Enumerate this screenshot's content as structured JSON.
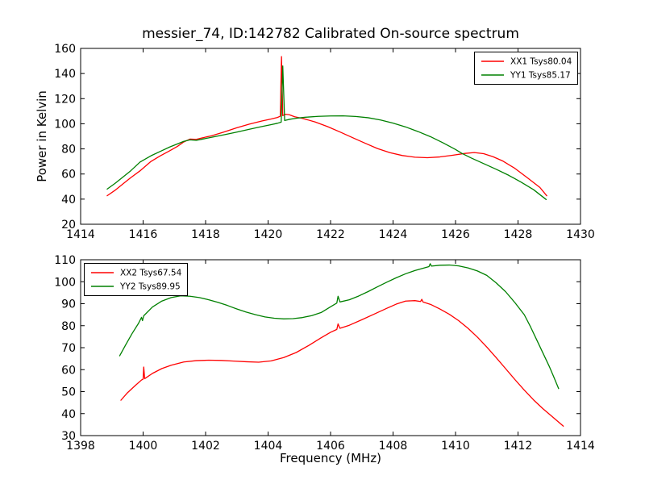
{
  "title": "messier_74, ID:142782 Calibrated On-source spectrum",
  "colors": {
    "series_red": "#ff0000",
    "series_green": "#008000",
    "axis": "#000000",
    "background": "#ffffff"
  },
  "labels": {
    "ylabel_top": "Power in Kelvin",
    "xlabel_bottom": "Frequency (MHz)"
  },
  "chart_data": [
    {
      "type": "line",
      "title": "messier_74, ID:142782 Calibrated On-source spectrum",
      "xlabel": "",
      "ylabel": "Power in Kelvin",
      "xlim": [
        1414,
        1430
      ],
      "ylim": [
        20,
        160
      ],
      "xticks": [
        1414,
        1416,
        1418,
        1420,
        1422,
        1424,
        1426,
        1428,
        1430
      ],
      "yticks": [
        20,
        40,
        60,
        80,
        100,
        120,
        140,
        160
      ],
      "grid": false,
      "legend_position": "top-right",
      "series": [
        {
          "name": "XX1 Tsys80.04",
          "color": "#ff0000",
          "points": [
            [
              1414.85,
              42.7
            ],
            [
              1415.1,
              47
            ],
            [
              1415.35,
              52
            ],
            [
              1415.6,
              57
            ],
            [
              1415.9,
              62.5
            ],
            [
              1416.25,
              70
            ],
            [
              1416.55,
              74.5
            ],
            [
              1416.85,
              78.5
            ],
            [
              1417.1,
              82
            ],
            [
              1417.3,
              85.5
            ],
            [
              1417.5,
              87.8
            ],
            [
              1417.7,
              87.6
            ],
            [
              1417.9,
              88.8
            ],
            [
              1418.2,
              90.5
            ],
            [
              1418.6,
              93.5
            ],
            [
              1419,
              96.8
            ],
            [
              1419.4,
              99.7
            ],
            [
              1419.8,
              102.2
            ],
            [
              1420.1,
              103.8
            ],
            [
              1420.3,
              105
            ],
            [
              1420.39,
              106
            ],
            [
              1420.43,
              153.5
            ],
            [
              1420.47,
              106.5
            ],
            [
              1420.56,
              107.6
            ],
            [
              1420.68,
              107.2
            ],
            [
              1420.85,
              105.6
            ],
            [
              1421.1,
              104.3
            ],
            [
              1421.5,
              101.5
            ],
            [
              1421.9,
              97.8
            ],
            [
              1422.3,
              93.5
            ],
            [
              1422.7,
              89
            ],
            [
              1423.1,
              84.6
            ],
            [
              1423.5,
              80.3
            ],
            [
              1423.9,
              77
            ],
            [
              1424.3,
              74.7
            ],
            [
              1424.7,
              73.4
            ],
            [
              1425.1,
              73
            ],
            [
              1425.5,
              73.6
            ],
            [
              1425.9,
              74.9
            ],
            [
              1426.3,
              76.4
            ],
            [
              1426.6,
              77.1
            ],
            [
              1426.9,
              76.2
            ],
            [
              1427.2,
              73.8
            ],
            [
              1427.5,
              70.5
            ],
            [
              1427.9,
              64.5
            ],
            [
              1428.3,
              57
            ],
            [
              1428.7,
              49.3
            ],
            [
              1428.92,
              42.7
            ]
          ]
        },
        {
          "name": "YY1 Tsys85.17",
          "color": "#008000",
          "points": [
            [
              1414.85,
              48
            ],
            [
              1415.1,
              52.5
            ],
            [
              1415.35,
              57.5
            ],
            [
              1415.6,
              62.5
            ],
            [
              1415.9,
              69.5
            ],
            [
              1416.25,
              74.5
            ],
            [
              1416.55,
              78
            ],
            [
              1416.85,
              81.5
            ],
            [
              1417.1,
              84
            ],
            [
              1417.3,
              86
            ],
            [
              1417.5,
              87.2
            ],
            [
              1417.7,
              86.8
            ],
            [
              1417.9,
              87.8
            ],
            [
              1418.2,
              89.3
            ],
            [
              1418.6,
              91.3
            ],
            [
              1419,
              93.4
            ],
            [
              1419.4,
              95.6
            ],
            [
              1419.8,
              97.8
            ],
            [
              1420.1,
              99.3
            ],
            [
              1420.3,
              100.4
            ],
            [
              1420.42,
              101.3
            ],
            [
              1420.47,
              146
            ],
            [
              1420.53,
              102.6
            ],
            [
              1420.7,
              103.6
            ],
            [
              1420.9,
              104.4
            ],
            [
              1421.2,
              105.2
            ],
            [
              1421.6,
              105.9
            ],
            [
              1422,
              106.2
            ],
            [
              1422.4,
              106.3
            ],
            [
              1422.8,
              105.8
            ],
            [
              1423.2,
              104.8
            ],
            [
              1423.6,
              103
            ],
            [
              1424,
              100.5
            ],
            [
              1424.4,
              97.5
            ],
            [
              1424.8,
              93.8
            ],
            [
              1425.2,
              89.7
            ],
            [
              1425.6,
              84.8
            ],
            [
              1426,
              79.5
            ],
            [
              1426.2,
              76.5
            ],
            [
              1426.5,
              72.8
            ],
            [
              1426.9,
              68.3
            ],
            [
              1427.3,
              63.8
            ],
            [
              1427.7,
              59
            ],
            [
              1428.1,
              53.5
            ],
            [
              1428.5,
              47.5
            ],
            [
              1428.9,
              39.7
            ]
          ]
        }
      ]
    },
    {
      "type": "line",
      "title": "",
      "xlabel": "Frequency (MHz)",
      "ylabel": "",
      "xlim": [
        1398,
        1414
      ],
      "ylim": [
        30,
        110
      ],
      "xticks": [
        1398,
        1400,
        1402,
        1404,
        1406,
        1408,
        1410,
        1412,
        1414
      ],
      "yticks": [
        30,
        40,
        50,
        60,
        70,
        80,
        90,
        100,
        110
      ],
      "grid": false,
      "legend_position": "top-left",
      "series": [
        {
          "name": "XX2 Tsys67.54",
          "color": "#ff0000",
          "points": [
            [
              1399.29,
              46.1
            ],
            [
              1399.5,
              49.5
            ],
            [
              1399.75,
              52.8
            ],
            [
              1399.95,
              55.3
            ],
            [
              1400,
              55.7
            ],
            [
              1400.02,
              61.2
            ],
            [
              1400.05,
              55.9
            ],
            [
              1400.3,
              58.3
            ],
            [
              1400.6,
              60.5
            ],
            [
              1400.9,
              62
            ],
            [
              1401.3,
              63.5
            ],
            [
              1401.7,
              64.1
            ],
            [
              1402.1,
              64.3
            ],
            [
              1402.5,
              64.2
            ],
            [
              1402.9,
              63.9
            ],
            [
              1403.3,
              63.6
            ],
            [
              1403.7,
              63.4
            ],
            [
              1404.1,
              64
            ],
            [
              1404.5,
              65.5
            ],
            [
              1404.9,
              67.8
            ],
            [
              1405.3,
              71
            ],
            [
              1405.7,
              74.5
            ],
            [
              1406,
              77
            ],
            [
              1406.2,
              78.3
            ],
            [
              1406.24,
              80.8
            ],
            [
              1406.3,
              78.8
            ],
            [
              1406.6,
              80.2
            ],
            [
              1407,
              82.7
            ],
            [
              1407.4,
              85.3
            ],
            [
              1407.8,
              87.9
            ],
            [
              1408.1,
              89.8
            ],
            [
              1408.4,
              91.2
            ],
            [
              1408.7,
              91.4
            ],
            [
              1408.88,
              91
            ],
            [
              1408.92,
              92
            ],
            [
              1408.96,
              90.8
            ],
            [
              1409.2,
              89.7
            ],
            [
              1409.5,
              87.6
            ],
            [
              1409.8,
              85.2
            ],
            [
              1410.1,
              82.3
            ],
            [
              1410.4,
              78.8
            ],
            [
              1410.7,
              74.8
            ],
            [
              1411,
              70.3
            ],
            [
              1411.3,
              65.5
            ],
            [
              1411.6,
              60.5
            ],
            [
              1411.9,
              55.5
            ],
            [
              1412.2,
              50.7
            ],
            [
              1412.5,
              46.2
            ],
            [
              1412.8,
              42.2
            ],
            [
              1413.1,
              38.6
            ],
            [
              1413.45,
              34.3
            ]
          ]
        },
        {
          "name": "YY2 Tsys89.95",
          "color": "#008000",
          "points": [
            [
              1399.25,
              66.3
            ],
            [
              1399.45,
              71.5
            ],
            [
              1399.65,
              76.5
            ],
            [
              1399.85,
              81
            ],
            [
              1399.95,
              83.8
            ],
            [
              1399.98,
              82.3
            ],
            [
              1400.02,
              84.5
            ],
            [
              1400.3,
              88.5
            ],
            [
              1400.6,
              91.2
            ],
            [
              1400.9,
              92.8
            ],
            [
              1401.2,
              93.6
            ],
            [
              1401.5,
              93.4
            ],
            [
              1401.8,
              92.8
            ],
            [
              1402.1,
              91.8
            ],
            [
              1402.4,
              90.6
            ],
            [
              1402.7,
              89.2
            ],
            [
              1403,
              87.6
            ],
            [
              1403.3,
              86.2
            ],
            [
              1403.6,
              85
            ],
            [
              1403.9,
              84
            ],
            [
              1404.2,
              83.4
            ],
            [
              1404.5,
              83.1
            ],
            [
              1404.8,
              83.2
            ],
            [
              1405.1,
              83.7
            ],
            [
              1405.4,
              84.6
            ],
            [
              1405.7,
              86
            ],
            [
              1406,
              88.6
            ],
            [
              1406.2,
              90.3
            ],
            [
              1406.24,
              93.4
            ],
            [
              1406.3,
              90.8
            ],
            [
              1406.6,
              91.8
            ],
            [
              1406.9,
              93.5
            ],
            [
              1407.2,
              95.5
            ],
            [
              1407.5,
              97.7
            ],
            [
              1407.8,
              99.8
            ],
            [
              1408.1,
              101.8
            ],
            [
              1408.4,
              103.6
            ],
            [
              1408.7,
              105.1
            ],
            [
              1409,
              106.3
            ],
            [
              1409.15,
              106.9
            ],
            [
              1409.19,
              108.2
            ],
            [
              1409.23,
              107.1
            ],
            [
              1409.5,
              107.5
            ],
            [
              1409.8,
              107.6
            ],
            [
              1410.1,
              107.2
            ],
            [
              1410.4,
              106.3
            ],
            [
              1410.7,
              104.9
            ],
            [
              1411,
              102.9
            ],
            [
              1411.3,
              99.5
            ],
            [
              1411.6,
              95.5
            ],
            [
              1411.9,
              90.5
            ],
            [
              1412.2,
              85
            ],
            [
              1412.4,
              79.5
            ],
            [
              1412.6,
              73.5
            ],
            [
              1412.8,
              67.5
            ],
            [
              1413,
              61.5
            ],
            [
              1413.15,
              56.5
            ],
            [
              1413.3,
              51.4
            ]
          ]
        }
      ]
    }
  ]
}
